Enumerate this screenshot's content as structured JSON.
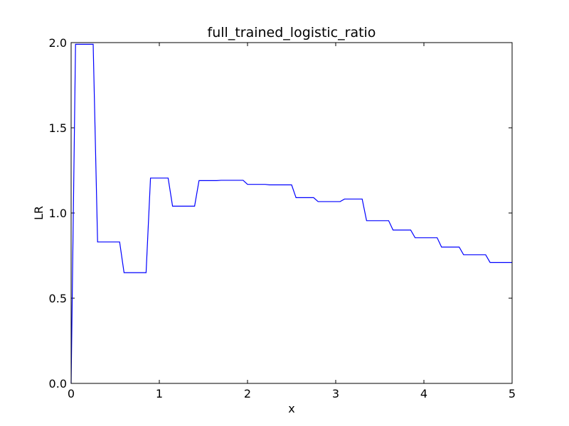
{
  "chart_data": {
    "type": "line",
    "title": "full_trained_logistic_ratio",
    "xlabel": "x",
    "ylabel": "LR",
    "xlim": [
      0,
      5
    ],
    "ylim": [
      0,
      2
    ],
    "x_ticks": [
      "0",
      "1",
      "2",
      "3",
      "4",
      "5"
    ],
    "y_ticks": [
      "0.0",
      "0.5",
      "1.0",
      "1.5",
      "2.0"
    ],
    "grid": false,
    "legend": "none",
    "series": [
      {
        "color": "#0000ff",
        "x": [
          0,
          0.05,
          0.25,
          0.3,
          0.55,
          0.6,
          0.85,
          0.9,
          1.1,
          1.15,
          1.4,
          1.45,
          1.65,
          1.7,
          1.95,
          2.0,
          2.2,
          2.25,
          2.5,
          2.55,
          2.75,
          2.8,
          3.05,
          3.1,
          3.3,
          3.35,
          3.6,
          3.65,
          3.85,
          3.9,
          4.15,
          4.2,
          4.4,
          4.45,
          4.7,
          4.75,
          5.0
        ],
        "y": [
          0.0,
          1.99,
          1.99,
          0.83,
          0.83,
          0.65,
          0.65,
          1.205,
          1.205,
          1.04,
          1.04,
          1.19,
          1.19,
          1.192,
          1.192,
          1.168,
          1.168,
          1.165,
          1.165,
          1.09,
          1.09,
          1.067,
          1.067,
          1.082,
          1.082,
          0.955,
          0.955,
          0.9,
          0.9,
          0.855,
          0.855,
          0.8,
          0.8,
          0.755,
          0.755,
          0.71,
          0.71
        ]
      }
    ]
  }
}
